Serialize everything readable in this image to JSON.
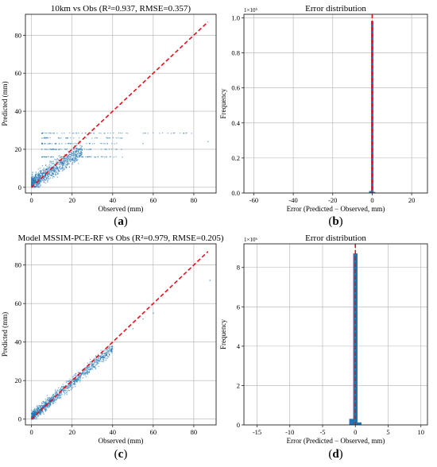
{
  "chart_data": [
    {
      "panel": "a",
      "type": "scatter",
      "title": "10km vs Obs (R²=0.937, RMSE=0.357)",
      "xlabel": "Observed (mm)",
      "ylabel": "Predicted (mm)",
      "xlim": [
        -3,
        91
      ],
      "ylim": [
        -3,
        91
      ],
      "xticks": [
        0,
        20,
        40,
        60,
        80
      ],
      "yticks": [
        0,
        20,
        40,
        60,
        80
      ],
      "grid": true,
      "point_color": "#1f77b4",
      "reference_line": {
        "style": "dashed",
        "color": "#e8101a",
        "from": [
          0,
          0
        ],
        "to": [
          87,
          87
        ]
      },
      "clusters": [
        {
          "x_range": [
            0,
            25
          ],
          "y_base": 2,
          "y_slope": 0.7,
          "y_spread": 7,
          "count": 900
        },
        {
          "x_range": [
            5,
            45
          ],
          "y_values": [
            16,
            20,
            23,
            26
          ],
          "count": 200
        },
        {
          "x_range": [
            5,
            80
          ],
          "y_values": [
            28.5
          ],
          "count": 60
        }
      ],
      "points": [
        [
          87,
          24
        ],
        [
          75,
          28.5
        ],
        [
          70,
          28.5
        ],
        [
          55,
          23
        ]
      ],
      "letter": "a"
    },
    {
      "panel": "b",
      "type": "bar",
      "title": "Error distribution",
      "xlabel": "Error (Predicted − Observed, mm)",
      "ylabel": "Frequency",
      "xlim": [
        -65,
        28
      ],
      "ylim": [
        0,
        1.02
      ],
      "xticks": [
        -60,
        -40,
        -20,
        0,
        20
      ],
      "yticks": [
        "0.0",
        "0.2",
        "0.4",
        "0.6",
        "0.8",
        "1.0"
      ],
      "ytick_values": [
        0,
        0.2,
        0.4,
        0.6,
        0.8,
        1.0
      ],
      "scale_label": "1×10⁵",
      "grid": true,
      "bar_color": "#1f77b4",
      "bins": [
        {
          "x0": -1.5,
          "x1": -0.5,
          "value": 0.01
        },
        {
          "x0": -0.5,
          "x1": 0.5,
          "value": 0.98
        },
        {
          "x0": 0.5,
          "x1": 1.5,
          "value": 0.005
        }
      ],
      "vline": {
        "x": 0,
        "color": "#e8101a",
        "style": "dashed"
      },
      "letter": "b"
    },
    {
      "panel": "c",
      "type": "scatter",
      "title": "Model MSSIM-PCE-RF vs Obs (R²=0.979, RMSE=0.205)",
      "xlabel": "Observed (mm)",
      "ylabel": "Predicted (mm)",
      "xlim": [
        -3,
        91
      ],
      "ylim": [
        -3,
        91
      ],
      "xticks": [
        0,
        20,
        40,
        60,
        80
      ],
      "yticks": [
        0,
        20,
        40,
        60,
        80
      ],
      "grid": true,
      "point_color": "#1f77b4",
      "reference_line": {
        "style": "dashed",
        "color": "#e8101a",
        "from": [
          0,
          0
        ],
        "to": [
          87,
          87
        ]
      },
      "clusters": [
        {
          "x_range": [
            0,
            40
          ],
          "y_base": 1,
          "y_slope": 0.9,
          "y_spread": 5,
          "count": 1100
        }
      ],
      "points": [
        [
          88,
          72
        ],
        [
          60,
          55
        ],
        [
          55,
          52
        ],
        [
          50,
          47
        ]
      ],
      "letter": "c"
    },
    {
      "panel": "d",
      "type": "bar",
      "title": "Error distribution",
      "xlabel": "Error (Predicted − Observed, mm)",
      "ylabel": "Frequency",
      "xlim": [
        -17,
        11
      ],
      "ylim": [
        0,
        9.2
      ],
      "xticks": [
        -15,
        -10,
        -5,
        0,
        5,
        10
      ],
      "yticks": [
        "0",
        "2",
        "4",
        "6",
        "8"
      ],
      "ytick_values": [
        0,
        2,
        4,
        6,
        8
      ],
      "scale_label": "1×10⁶",
      "grid": true,
      "bar_color": "#1f77b4",
      "bins": [
        {
          "x0": -0.9,
          "x1": -0.3,
          "value": 0.3
        },
        {
          "x0": -0.3,
          "x1": 0.3,
          "value": 8.7
        },
        {
          "x0": 0.3,
          "x1": 0.9,
          "value": 0.12
        }
      ],
      "vline": {
        "x": 0,
        "color": "#e8101a",
        "style": "dashed"
      },
      "letter": "d"
    }
  ]
}
